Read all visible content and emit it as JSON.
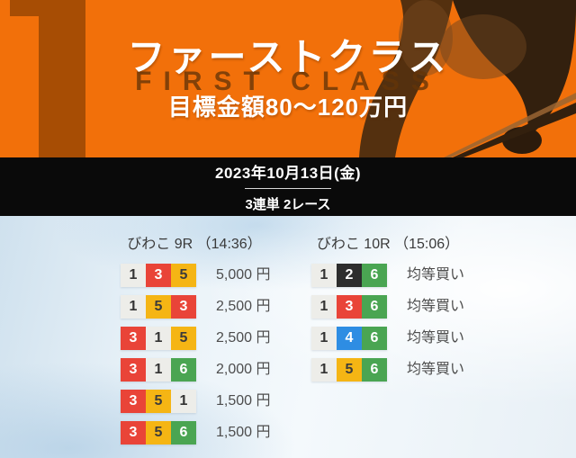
{
  "banner": {
    "rank_number": "1",
    "title": "ファーストクラス",
    "subtitle_en": "FIRST CLASS",
    "target_label": "目標金額80〜120万円",
    "bg_color": "#F2700A",
    "digit_color": "#A74D04",
    "silhouette_icon": "boat-racer-silhouette"
  },
  "date_bar": {
    "date": "2023年10月13日(金)",
    "plan": "3連単 2レース",
    "bg_color": "#0A0A0A"
  },
  "races": [
    {
      "header": "びわこ 9R （14:36）",
      "rows": [
        {
          "combo": [
            "1",
            "3",
            "5"
          ],
          "label": "5,000 円"
        },
        {
          "combo": [
            "1",
            "5",
            "3"
          ],
          "label": "2,500 円"
        },
        {
          "combo": [
            "3",
            "1",
            "5"
          ],
          "label": "2,500 円"
        },
        {
          "combo": [
            "3",
            "1",
            "6"
          ],
          "label": "2,000 円"
        },
        {
          "combo": [
            "3",
            "5",
            "1"
          ],
          "label": "1,500 円"
        },
        {
          "combo": [
            "3",
            "5",
            "6"
          ],
          "label": "1,500 円"
        }
      ]
    },
    {
      "header": "びわこ 10R （15:06）",
      "rows": [
        {
          "combo": [
            "1",
            "2",
            "6"
          ],
          "label": "均等買い"
        },
        {
          "combo": [
            "1",
            "3",
            "6"
          ],
          "label": "均等買い"
        },
        {
          "combo": [
            "1",
            "4",
            "6"
          ],
          "label": "均等買い"
        },
        {
          "combo": [
            "1",
            "5",
            "6"
          ],
          "label": "均等買い"
        }
      ]
    }
  ],
  "boat_colors": {
    "1": {
      "bg": "#EDEDE9",
      "fg": "#333333"
    },
    "2": {
      "bg": "#2D2D2D",
      "fg": "#FFFFFF"
    },
    "3": {
      "bg": "#E94438",
      "fg": "#FFFFFF"
    },
    "4": {
      "bg": "#2E8DE3",
      "fg": "#FFFFFF"
    },
    "5": {
      "bg": "#F5B514",
      "fg": "#3B3B3B"
    },
    "6": {
      "bg": "#4AA552",
      "fg": "#FFFFFF"
    }
  }
}
